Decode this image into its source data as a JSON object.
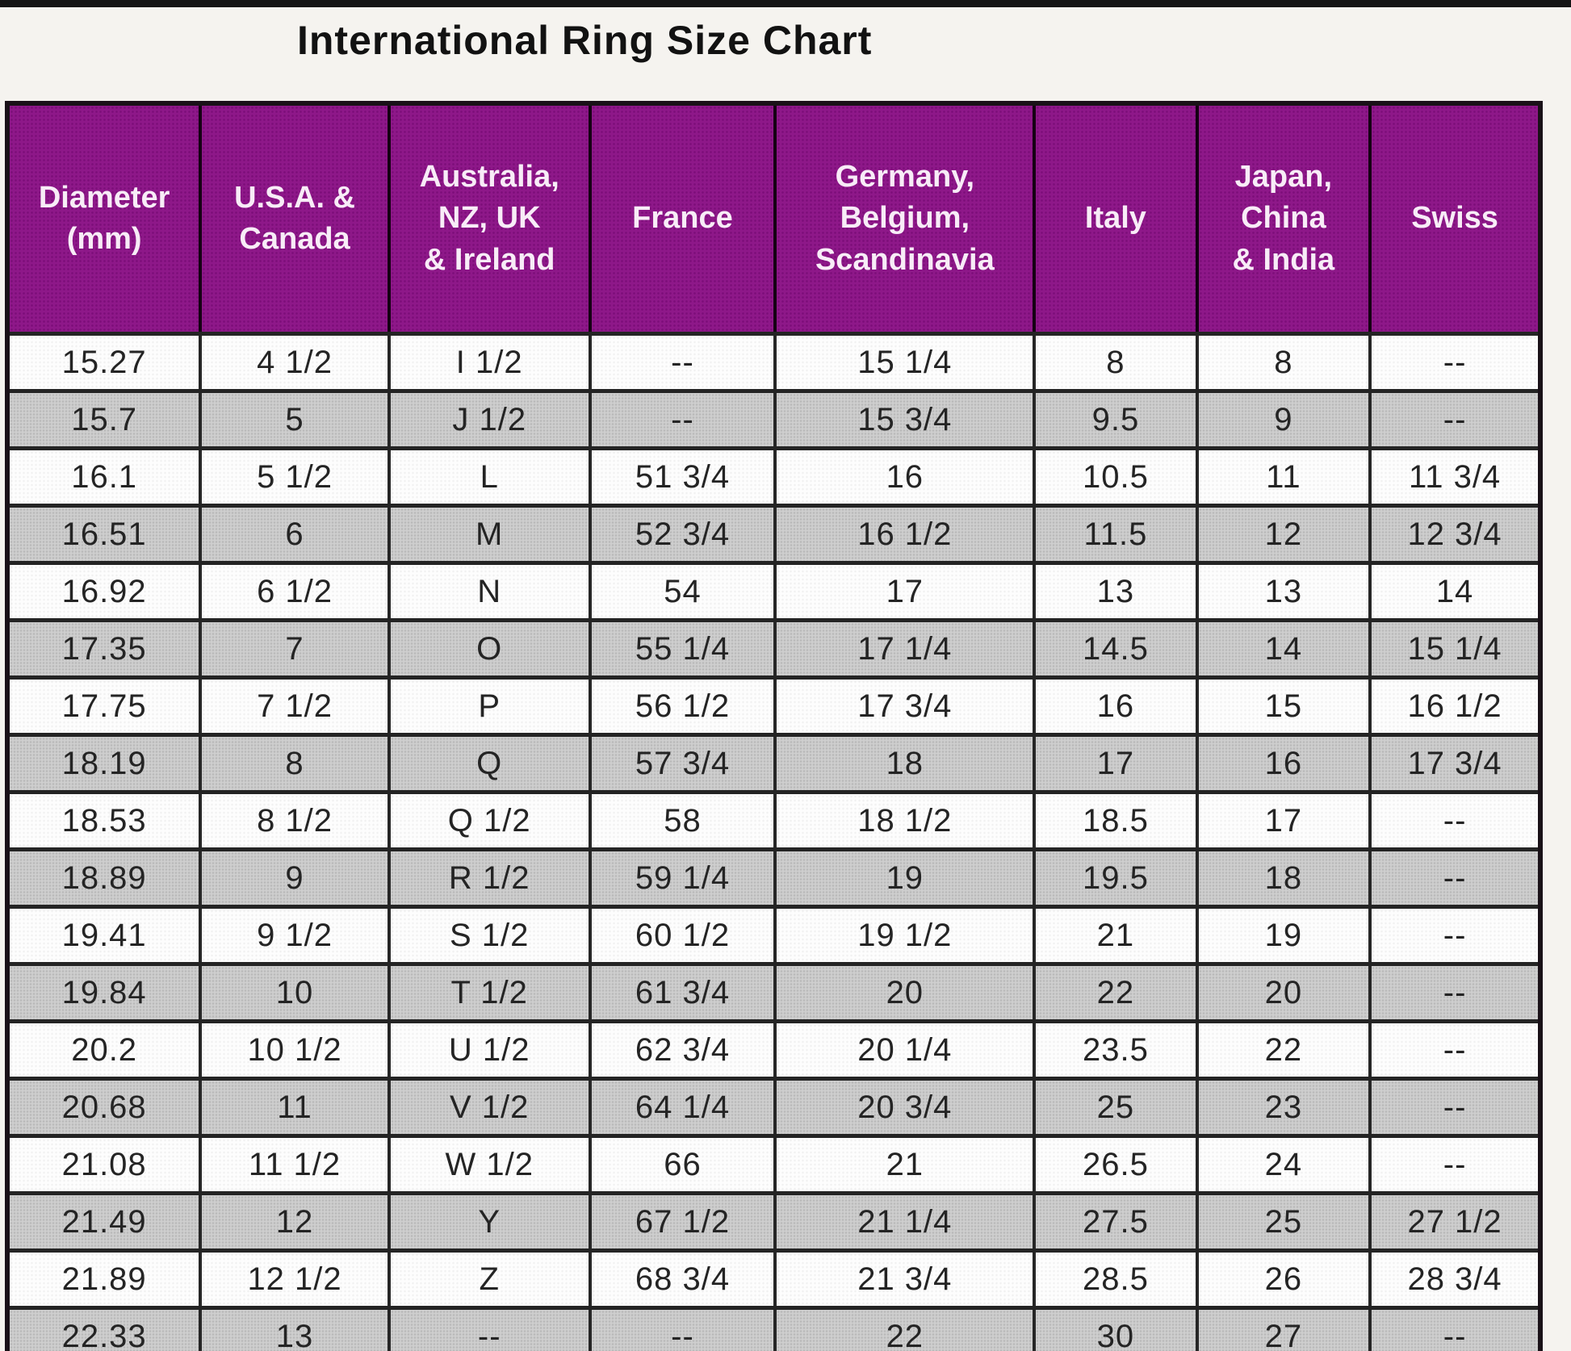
{
  "page": {
    "title": "International Ring Size Chart"
  },
  "colors": {
    "header_bg": "#8E1889",
    "header_text": "#F8ECF7",
    "row_alt_bg": "#CECECE",
    "row_bg": "#FDFDFD",
    "border": "#1A1118",
    "title_text": "#121212"
  },
  "chart_data": {
    "type": "table",
    "title": "International Ring Size Chart",
    "columns": [
      "Diameter\n(mm)",
      "U.S.A. &\nCanada",
      "Australia,\nNZ, UK\n& Ireland",
      "France",
      "Germany,\nBelgium,\nScandinavia",
      "Italy",
      "Japan,\nChina\n& India",
      "Swiss"
    ],
    "rows": [
      [
        "15.27",
        "4 1/2",
        "I 1/2",
        "--",
        "15 1/4",
        "8",
        "8",
        "--"
      ],
      [
        "15.7",
        "5",
        "J 1/2",
        "--",
        "15 3/4",
        "9.5",
        "9",
        "--"
      ],
      [
        "16.1",
        "5 1/2",
        "L",
        "51 3/4",
        "16",
        "10.5",
        "11",
        "11 3/4"
      ],
      [
        "16.51",
        "6",
        "M",
        "52 3/4",
        "16 1/2",
        "11.5",
        "12",
        "12 3/4"
      ],
      [
        "16.92",
        "6 1/2",
        "N",
        "54",
        "17",
        "13",
        "13",
        "14"
      ],
      [
        "17.35",
        "7",
        "O",
        "55 1/4",
        "17 1/4",
        "14.5",
        "14",
        "15 1/4"
      ],
      [
        "17.75",
        "7 1/2",
        "P",
        "56 1/2",
        "17 3/4",
        "16",
        "15",
        "16 1/2"
      ],
      [
        "18.19",
        "8",
        "Q",
        "57 3/4",
        "18",
        "17",
        "16",
        "17 3/4"
      ],
      [
        "18.53",
        "8 1/2",
        "Q 1/2",
        "58",
        "18 1/2",
        "18.5",
        "17",
        "--"
      ],
      [
        "18.89",
        "9",
        "R 1/2",
        "59 1/4",
        "19",
        "19.5",
        "18",
        "--"
      ],
      [
        "19.41",
        "9 1/2",
        "S 1/2",
        "60 1/2",
        "19 1/2",
        "21",
        "19",
        "--"
      ],
      [
        "19.84",
        "10",
        "T 1/2",
        "61 3/4",
        "20",
        "22",
        "20",
        "--"
      ],
      [
        "20.2",
        "10 1/2",
        "U 1/2",
        "62 3/4",
        "20 1/4",
        "23.5",
        "22",
        "--"
      ],
      [
        "20.68",
        "11",
        "V 1/2",
        "64 1/4",
        "20 3/4",
        "25",
        "23",
        "--"
      ],
      [
        "21.08",
        "11 1/2",
        "W 1/2",
        "66",
        "21",
        "26.5",
        "24",
        "--"
      ],
      [
        "21.49",
        "12",
        "Y",
        "67 1/2",
        "21 1/4",
        "27.5",
        "25",
        "27 1/2"
      ],
      [
        "21.89",
        "12 1/2",
        "Z",
        "68 3/4",
        "21 3/4",
        "28.5",
        "26",
        "28 3/4"
      ],
      [
        "22.33",
        "13",
        "--",
        "--",
        "22",
        "30",
        "27",
        "--"
      ]
    ]
  }
}
